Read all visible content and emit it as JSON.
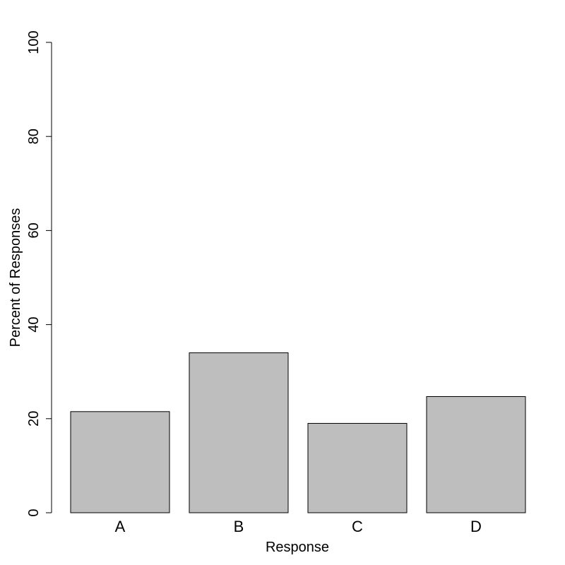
{
  "chart_data": {
    "type": "bar",
    "title": "",
    "xlabel": "Response",
    "ylabel": "Percent of Responses",
    "categories": [
      "A",
      "B",
      "C",
      "D"
    ],
    "values": [
      21.5,
      34.0,
      19.0,
      24.7
    ],
    "ylim": [
      0,
      100
    ],
    "yticks": [
      0,
      20,
      40,
      60,
      80,
      100
    ],
    "ytick_labels": [
      "0",
      "20",
      "40",
      "60",
      "80",
      "100"
    ],
    "grid": false,
    "legend": "none",
    "bar_fill": "#bebebe",
    "bar_stroke": "#000000"
  }
}
